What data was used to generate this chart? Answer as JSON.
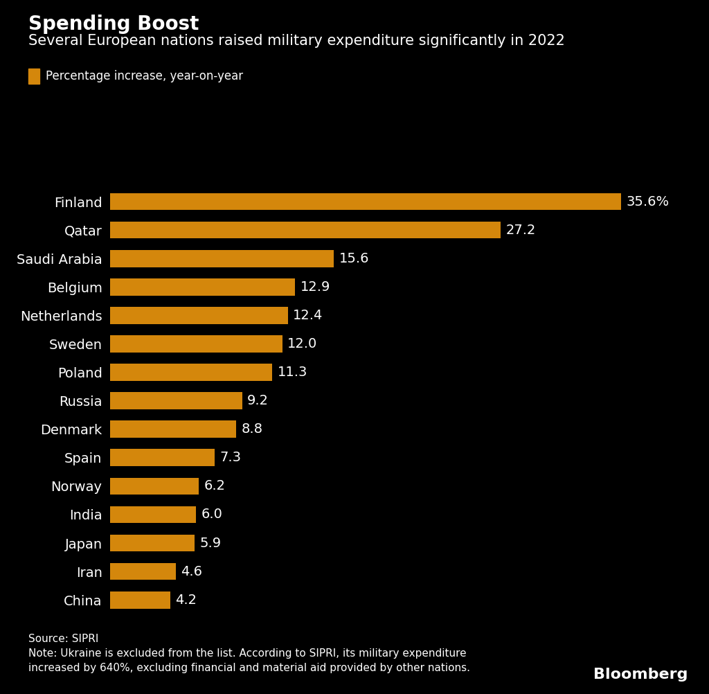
{
  "title_bold": "Spending Boost",
  "title_sub": "Several European nations raised military expenditure significantly in 2022",
  "legend_label": "Percentage increase, year-on-year",
  "countries": [
    "Finland",
    "Qatar",
    "Saudi Arabia",
    "Belgium",
    "Netherlands",
    "Sweden",
    "Poland",
    "Russia",
    "Denmark",
    "Spain",
    "Norway",
    "India",
    "Japan",
    "Iran",
    "China"
  ],
  "values": [
    35.6,
    27.2,
    15.6,
    12.9,
    12.4,
    12.0,
    11.3,
    9.2,
    8.8,
    7.3,
    6.2,
    6.0,
    5.9,
    4.6,
    4.2
  ],
  "value_labels": [
    "35.6%",
    "27.2",
    "15.6",
    "12.9",
    "12.4",
    "12.0",
    "11.3",
    "9.2",
    "8.8",
    "7.3",
    "6.2",
    "6.0",
    "5.9",
    "4.6",
    "4.2"
  ],
  "bar_color": "#D4870C",
  "background_color": "#000000",
  "text_color": "#FFFFFF",
  "source_text": "Source: SIPRI\nNote: Ukraine is excluded from the list. According to SIPRI, its military expenditure\nincreased by 640%, excluding financial and material aid provided by other nations.",
  "bloomberg_text": "Bloomberg",
  "xlim": [
    0,
    38
  ],
  "title_bold_fontsize": 20,
  "title_sub_fontsize": 15,
  "legend_fontsize": 12,
  "bar_label_fontsize": 14,
  "country_label_fontsize": 14,
  "source_fontsize": 11,
  "bloomberg_fontsize": 16
}
